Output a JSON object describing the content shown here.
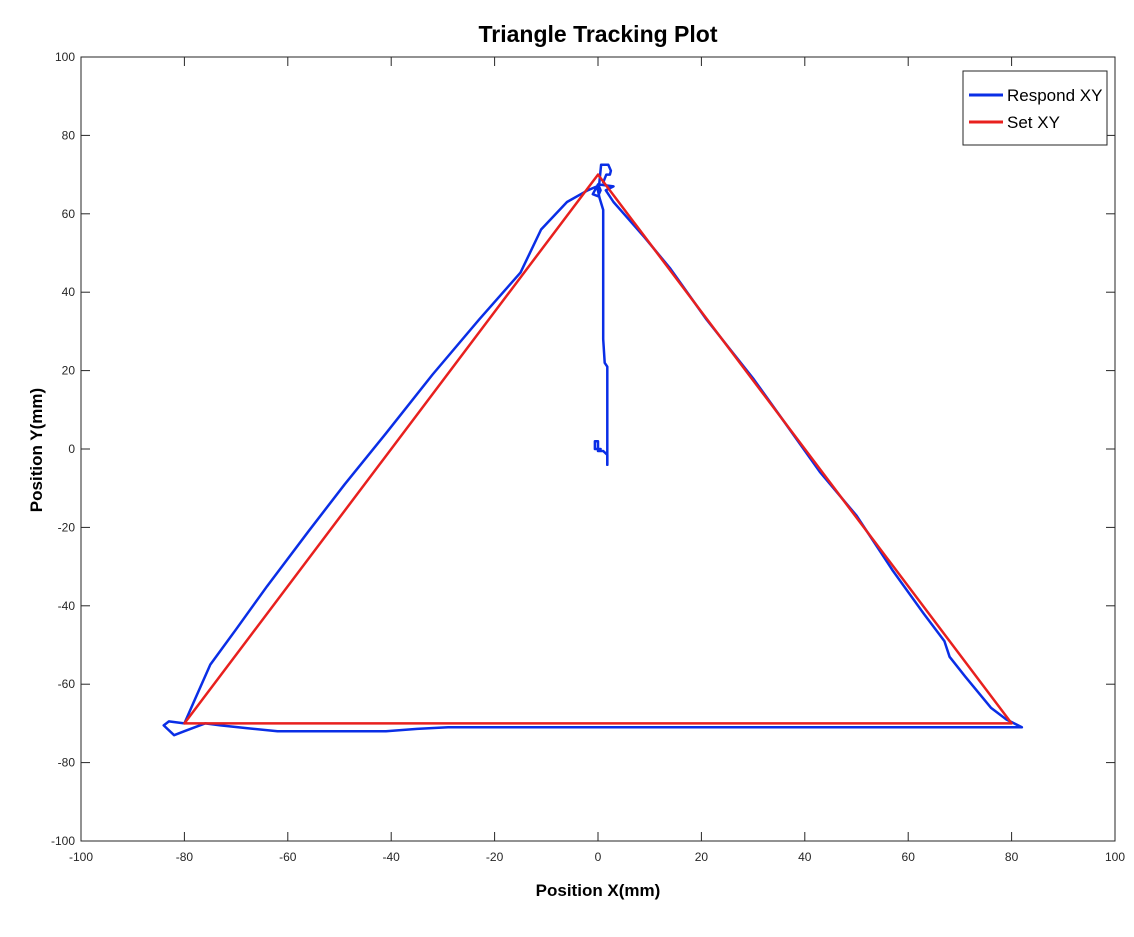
{
  "chart_data": {
    "type": "line",
    "title": "Triangle Tracking Plot",
    "xlabel": "Position X(mm)",
    "ylabel": "Position Y(mm)",
    "xlim": [
      -100,
      100
    ],
    "ylim": [
      -100,
      100
    ],
    "xticks": [
      -100,
      -80,
      -60,
      -40,
      -20,
      0,
      20,
      40,
      60,
      80,
      100
    ],
    "yticks": [
      -100,
      -80,
      -60,
      -40,
      -20,
      0,
      20,
      40,
      60,
      80,
      100
    ],
    "xtick_labels": [
      "-100",
      "-80",
      "-60",
      "-40",
      "-20",
      "0",
      "20",
      "40",
      "60",
      "80",
      "100"
    ],
    "ytick_labels": [
      "-100",
      "-80",
      "-60",
      "-40",
      "-20",
      "0",
      "20",
      "40",
      "60",
      "80",
      "100"
    ],
    "grid": false,
    "legend_position": "top-right",
    "series": [
      {
        "name": "Respond XY",
        "color": "#0a2ee6",
        "points": [
          [
            1.8,
            -4
          ],
          [
            1.8,
            21
          ],
          [
            1.3,
            22
          ],
          [
            1,
            28
          ],
          [
            1,
            61
          ],
          [
            0.3,
            64
          ],
          [
            -0.2,
            67
          ],
          [
            -2,
            66
          ],
          [
            -6,
            63
          ],
          [
            -11,
            56
          ],
          [
            -15,
            45
          ],
          [
            -23,
            33
          ],
          [
            -32,
            19
          ],
          [
            -41,
            4
          ],
          [
            -49,
            -9
          ],
          [
            -56,
            -21
          ],
          [
            -64,
            -35
          ],
          [
            -70,
            -46
          ],
          [
            -75,
            -55
          ],
          [
            -78,
            -64
          ],
          [
            -80,
            -70
          ],
          [
            -83,
            -69.5
          ],
          [
            -84,
            -70.5
          ],
          [
            -82,
            -73
          ],
          [
            -80,
            -72
          ],
          [
            -78,
            -71
          ],
          [
            -76,
            -70
          ],
          [
            -73,
            -70.5
          ],
          [
            -68,
            -71.2
          ],
          [
            -62,
            -72
          ],
          [
            -50,
            -72
          ],
          [
            -41,
            -72
          ],
          [
            -35,
            -71.4
          ],
          [
            -29,
            -71
          ],
          [
            -15,
            -71
          ],
          [
            0,
            -71
          ],
          [
            20,
            -71
          ],
          [
            40,
            -71
          ],
          [
            60,
            -71
          ],
          [
            78,
            -71
          ],
          [
            82,
            -71
          ],
          [
            79,
            -69
          ],
          [
            76,
            -66
          ],
          [
            71,
            -58
          ],
          [
            68,
            -53
          ],
          [
            67,
            -49
          ],
          [
            63,
            -42
          ],
          [
            57,
            -31
          ],
          [
            50,
            -17
          ],
          [
            43,
            -6
          ],
          [
            36,
            7
          ],
          [
            30,
            18
          ],
          [
            21,
            33
          ],
          [
            14,
            46
          ],
          [
            9,
            54
          ],
          [
            5,
            60
          ],
          [
            3,
            63
          ],
          [
            1.5,
            66
          ],
          [
            3,
            67
          ],
          [
            0,
            67.5
          ],
          [
            -1,
            65
          ],
          [
            0,
            64.5
          ],
          [
            0.5,
            66
          ],
          [
            0.2,
            67
          ],
          [
            0.6,
            72.5
          ],
          [
            2,
            72.5
          ],
          [
            2.5,
            71
          ],
          [
            2.3,
            70
          ],
          [
            1.6,
            70
          ],
          [
            1,
            68
          ]
        ]
      },
      {
        "name": "Set XY",
        "color": "#e8201e",
        "points": [
          [
            0,
            70
          ],
          [
            80,
            -70
          ],
          [
            -80,
            -70
          ],
          [
            0,
            70
          ]
        ]
      }
    ],
    "extra_traces": [
      {
        "series": "Respond XY",
        "points": [
          [
            1.8,
            -4
          ],
          [
            1.8,
            -1.5
          ],
          [
            1,
            -0.5
          ],
          [
            0,
            -0.5
          ],
          [
            0,
            2
          ],
          [
            -0.6,
            2
          ],
          [
            -0.6,
            0
          ],
          [
            0.5,
            0
          ]
        ]
      }
    ]
  }
}
